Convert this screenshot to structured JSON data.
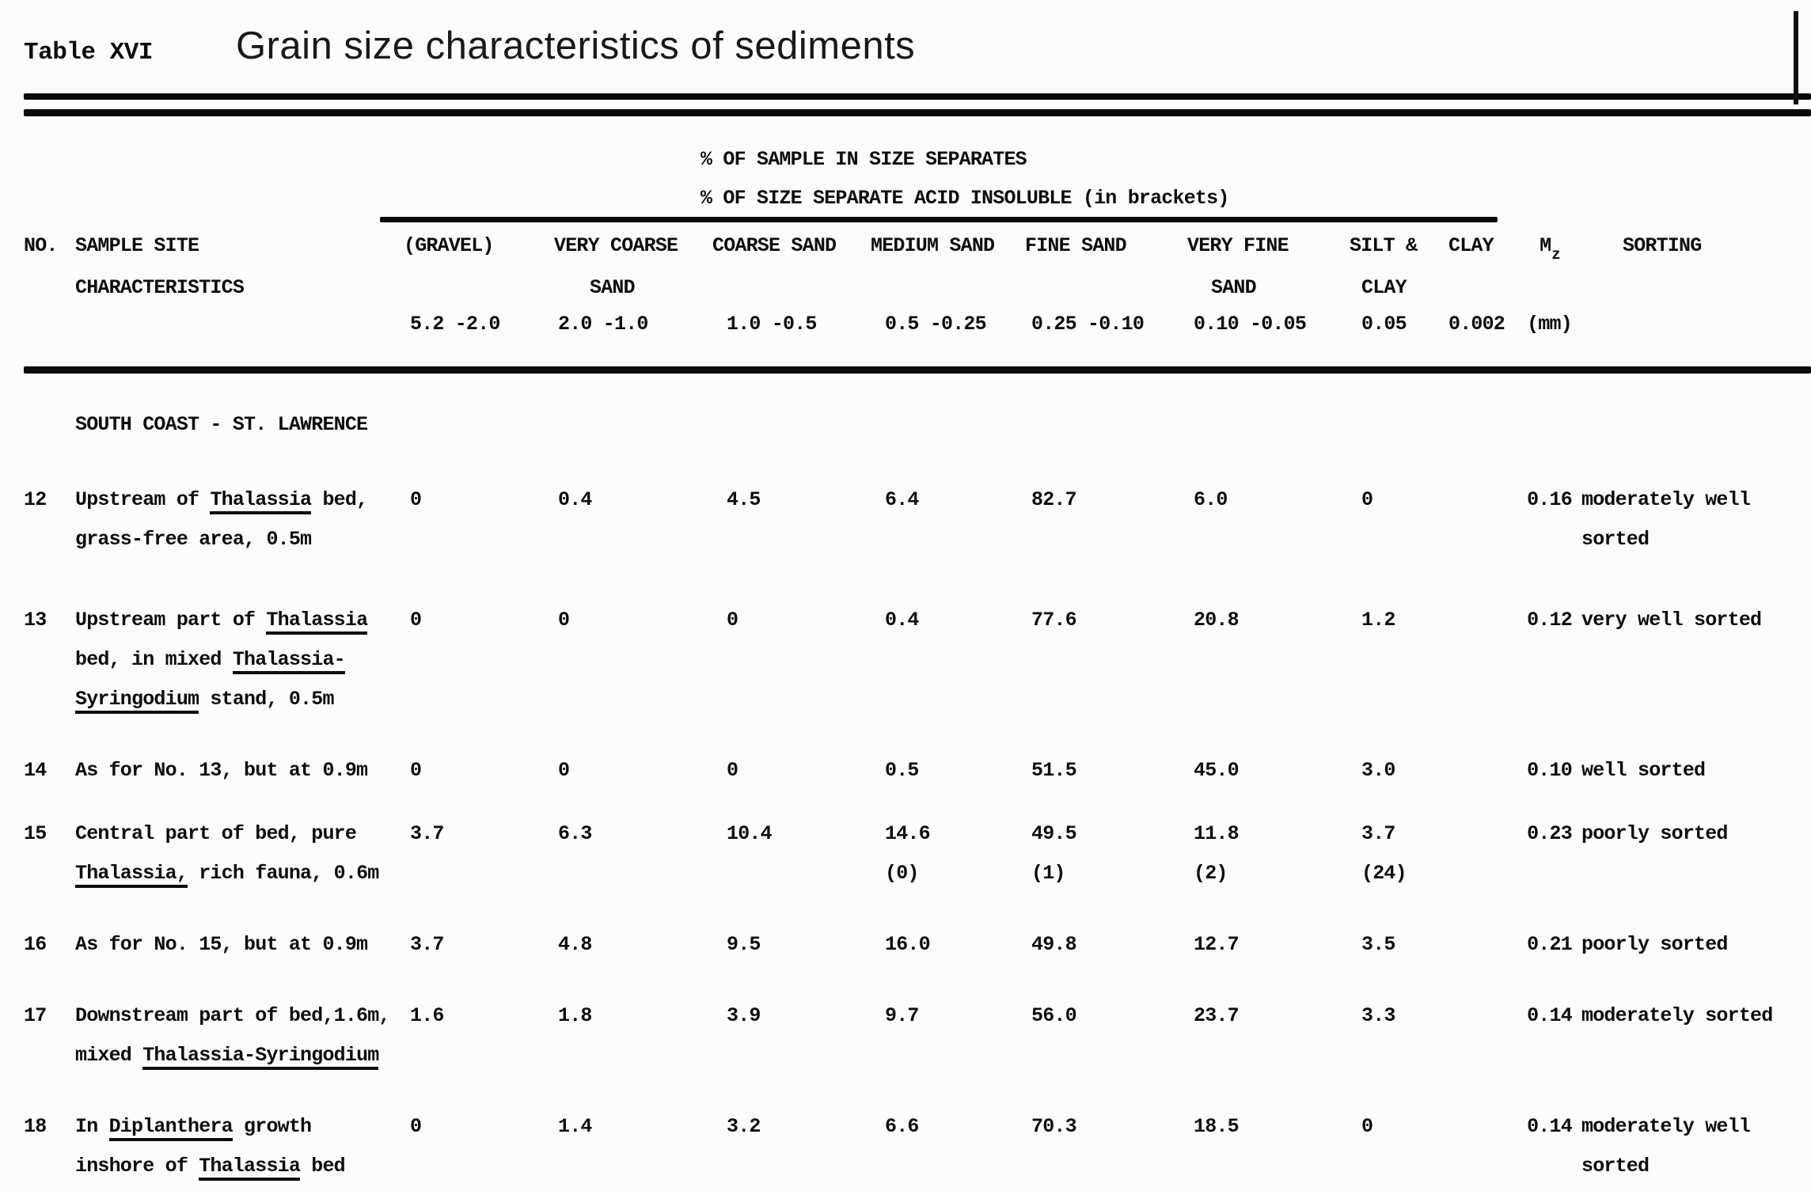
{
  "title": {
    "prefix": "Table XVI",
    "main": "Grain size characteristics of sediments"
  },
  "header": {
    "span_line1": "% OF SAMPLE IN SIZE SEPARATES",
    "span_line2": "% OF SIZE SEPARATE ACID INSOLUBLE (in brackets)",
    "no": "NO.",
    "site_line1": "SAMPLE SITE",
    "site_line2": "CHARACTERISTICS",
    "columns": [
      {
        "l1": "(GRAVEL)",
        "l2": "",
        "range": "5.2 -2.0"
      },
      {
        "l1": "VERY COARSE",
        "l2": "SAND",
        "range": "2.0 -1.0"
      },
      {
        "l1": "COARSE SAND",
        "l2": "",
        "range": "1.0 -0.5"
      },
      {
        "l1": "MEDIUM SAND",
        "l2": "",
        "range": "0.5 -0.25"
      },
      {
        "l1": "FINE SAND",
        "l2": "",
        "range": "0.25 -0.10"
      },
      {
        "l1": "VERY FINE",
        "l2": "SAND",
        "range": "0.10 -0.05"
      },
      {
        "l1": "SILT &",
        "l2": "CLAY",
        "range": "0.05"
      },
      {
        "l1": "CLAY",
        "l2": "",
        "range": "0.002"
      },
      {
        "l1_main": "M",
        "l1_sub": "z",
        "range": "(mm)"
      },
      {
        "l1": "SORTING"
      }
    ]
  },
  "section": "SOUTH COAST - ST. LAWRENCE",
  "rows": [
    {
      "no": "12",
      "site": [
        [
          {
            "t": "Upstream of "
          },
          {
            "t": "Thalassia",
            "u": true
          },
          {
            "t": " bed,"
          }
        ],
        [
          {
            "t": "grass-free area, 0.5m"
          }
        ]
      ],
      "cells": [
        [
          "0"
        ],
        [
          "0.4"
        ],
        [
          "4.5"
        ],
        [
          "6.4"
        ],
        [
          "82.7"
        ],
        [
          "6.0"
        ],
        [
          "0"
        ],
        []
      ],
      "mz": "0.16",
      "sorting": [
        "moderately well",
        "sorted"
      ]
    },
    {
      "no": "13",
      "site": [
        [
          {
            "t": "Upstream part of "
          },
          {
            "t": "Thalassia",
            "u": true
          }
        ],
        [
          {
            "t": "bed, in mixed "
          },
          {
            "t": "Thalassia-",
            "u": true
          }
        ],
        [
          {
            "t": "Syringodium",
            "u": true
          },
          {
            "t": " stand, 0.5m"
          }
        ]
      ],
      "cells": [
        [
          "0"
        ],
        [
          "0"
        ],
        [
          "0"
        ],
        [
          "0.4"
        ],
        [
          "77.6"
        ],
        [
          "20.8"
        ],
        [
          "1.2"
        ],
        []
      ],
      "mz": "0.12",
      "sorting": [
        "very well sorted"
      ]
    },
    {
      "no": "14",
      "site": [
        [
          {
            "t": "As for No. 13, but at 0.9m"
          }
        ]
      ],
      "cells": [
        [
          "0"
        ],
        [
          "0"
        ],
        [
          "0"
        ],
        [
          "0.5"
        ],
        [
          "51.5"
        ],
        [
          "45.0"
        ],
        [
          "3.0"
        ],
        []
      ],
      "mz": "0.10",
      "sorting": [
        "well sorted"
      ]
    },
    {
      "no": "15",
      "site": [
        [
          {
            "t": "Central part of bed, pure"
          }
        ],
        [
          {
            "t": "Thalassia,",
            "u": true
          },
          {
            "t": " rich fauna, 0.6m"
          }
        ]
      ],
      "cells": [
        [
          "3.7"
        ],
        [
          "6.3"
        ],
        [
          "10.4"
        ],
        [
          "14.6",
          "(0)"
        ],
        [
          "49.5",
          "(1)"
        ],
        [
          "11.8",
          "(2)"
        ],
        [
          "3.7",
          "(24)"
        ],
        []
      ],
      "mz": "0.23",
      "sorting": [
        "poorly sorted"
      ]
    },
    {
      "no": "16",
      "site": [
        [
          {
            "t": "As for No. 15, but at 0.9m"
          }
        ]
      ],
      "cells": [
        [
          "3.7"
        ],
        [
          "4.8"
        ],
        [
          "9.5"
        ],
        [
          "16.0"
        ],
        [
          "49.8"
        ],
        [
          "12.7"
        ],
        [
          "3.5"
        ],
        []
      ],
      "mz": "0.21",
      "sorting": [
        "poorly sorted"
      ]
    },
    {
      "no": "17",
      "site": [
        [
          {
            "t": "Downstream part of bed,1.6m,"
          }
        ],
        [
          {
            "t": "mixed "
          },
          {
            "t": "Thalassia-Syringodium",
            "u": true
          }
        ]
      ],
      "cells": [
        [
          "1.6"
        ],
        [
          "1.8"
        ],
        [
          "3.9"
        ],
        [
          "9.7"
        ],
        [
          "56.0"
        ],
        [
          "23.7"
        ],
        [
          "3.3"
        ],
        []
      ],
      "mz": "0.14",
      "sorting": [
        "moderately sorted"
      ]
    },
    {
      "no": "18",
      "site": [
        [
          {
            "t": "In "
          },
          {
            "t": "Diplanthera",
            "u": true
          },
          {
            "t": " growth"
          }
        ],
        [
          {
            "t": "inshore of "
          },
          {
            "t": "Thalassia",
            "u": true
          },
          {
            "t": " bed"
          }
        ]
      ],
      "cells": [
        [
          "0"
        ],
        [
          "1.4"
        ],
        [
          "3.2"
        ],
        [
          "6.6"
        ],
        [
          "70.3"
        ],
        [
          "18.5"
        ],
        [
          "0"
        ],
        []
      ],
      "mz": "0.14",
      "sorting": [
        "moderately well",
        "sorted"
      ]
    }
  ]
}
